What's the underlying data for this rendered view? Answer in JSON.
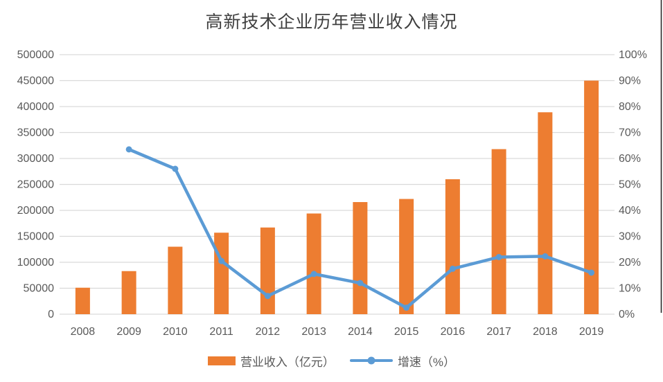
{
  "title": "高新技术企业历年营业收入情况",
  "colors": {
    "bar": "#ED7D31",
    "line": "#5B9BD5",
    "gridline": "#D9D9D9",
    "axis_text": "#595959",
    "title_text": "#3F3F3F",
    "border_line": "#262626",
    "background": "#FFFFFF"
  },
  "legend": [
    {
      "label": "营业收入（亿元）",
      "series": "bar"
    },
    {
      "label": "增速（%）",
      "series": "line"
    }
  ],
  "chart_data": {
    "type": "combo-bar-line",
    "title": "高新技术企业历年营业收入情况",
    "categories": [
      "2008",
      "2009",
      "2010",
      "2011",
      "2012",
      "2013",
      "2014",
      "2015",
      "2016",
      "2017",
      "2018",
      "2019"
    ],
    "series": [
      {
        "name": "营业收入（亿元）",
        "type": "bar",
        "y_axis": "left",
        "values": [
          51000,
          83000,
          130000,
          157000,
          167000,
          194000,
          216000,
          222000,
          260000,
          318000,
          389000,
          450000
        ]
      },
      {
        "name": "增速（%）",
        "type": "line",
        "y_axis": "right",
        "values": [
          null,
          63.5,
          56,
          20.5,
          7,
          15.5,
          12,
          2.5,
          17.5,
          22,
          22.3,
          16
        ]
      }
    ],
    "left_axis": {
      "min": 0,
      "max": 500000,
      "step": 50000,
      "tick_labels": [
        "0",
        "50000",
        "100000",
        "150000",
        "200000",
        "250000",
        "300000",
        "350000",
        "400000",
        "450000",
        "500000"
      ]
    },
    "right_axis": {
      "min": 0,
      "max": 100,
      "step": 10,
      "tick_labels": [
        "0%",
        "10%",
        "20%",
        "30%",
        "40%",
        "50%",
        "60%",
        "70%",
        "80%",
        "90%",
        "100%"
      ]
    },
    "grid": "horizontal",
    "legend_position": "bottom"
  }
}
